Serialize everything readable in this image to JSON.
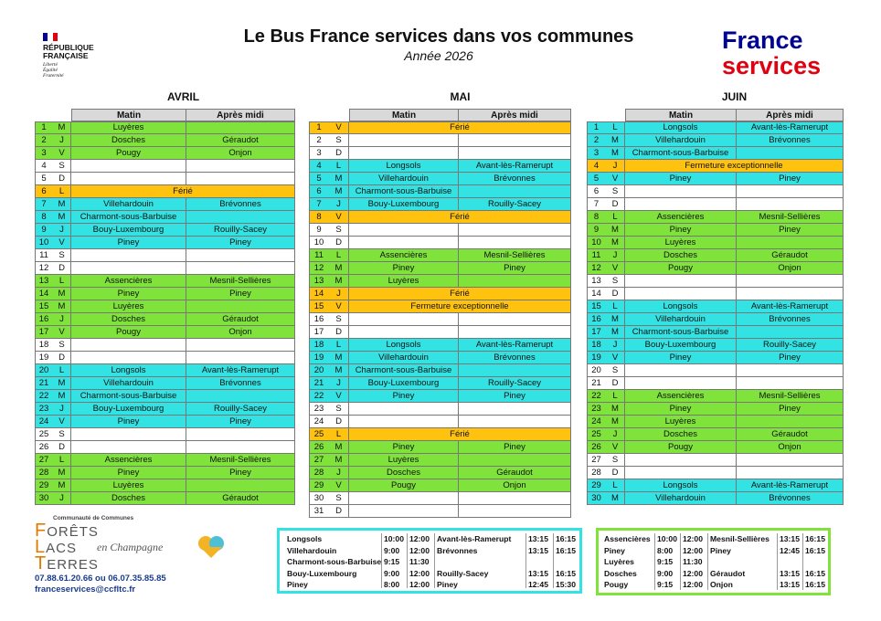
{
  "header": {
    "republique": [
      "RÉPUBLIQUE",
      "FRANÇAISE"
    ],
    "devise": [
      "Liberté",
      "Égalité",
      "Fraternité"
    ],
    "title": "Le Bus France services dans vos communes",
    "subtitle": "Année 2026",
    "brand": [
      "France",
      "services"
    ]
  },
  "columns": [
    "Matin",
    "Après midi"
  ],
  "fills": {
    "green": "#7fe33c",
    "cyan": "#33e3e3",
    "white": "#ffffff",
    "orange": "#ffc20e"
  },
  "months": [
    {
      "name": "AVRIL",
      "rows": [
        {
          "d": 1,
          "w": "M",
          "f": "green",
          "am": "Luyères"
        },
        {
          "d": 2,
          "w": "J",
          "f": "green",
          "am": "Dosches",
          "pm": "Géraudot"
        },
        {
          "d": 3,
          "w": "V",
          "f": "green",
          "am": "Pougy",
          "pm": "Onjon"
        },
        {
          "d": 4,
          "w": "S",
          "f": "white"
        },
        {
          "d": 5,
          "w": "D",
          "f": "white"
        },
        {
          "d": 6,
          "w": "L",
          "f": "orange",
          "span": "Férié"
        },
        {
          "d": 7,
          "w": "M",
          "f": "cyan",
          "am": "Villehardouin",
          "pm": "Brévonnes"
        },
        {
          "d": 8,
          "w": "M",
          "f": "cyan",
          "am": "Charmont-sous-Barbuise"
        },
        {
          "d": 9,
          "w": "J",
          "f": "cyan",
          "am": "Bouy-Luxembourg",
          "pm": "Rouilly-Sacey"
        },
        {
          "d": 10,
          "w": "V",
          "f": "cyan",
          "am": "Piney",
          "pm": "Piney"
        },
        {
          "d": 11,
          "w": "S",
          "f": "white"
        },
        {
          "d": 12,
          "w": "D",
          "f": "white"
        },
        {
          "d": 13,
          "w": "L",
          "f": "green",
          "am": "Assencières",
          "pm": "Mesnil-Sellières"
        },
        {
          "d": 14,
          "w": "M",
          "f": "green",
          "am": "Piney",
          "pm": "Piney"
        },
        {
          "d": 15,
          "w": "M",
          "f": "green",
          "am": "Luyères"
        },
        {
          "d": 16,
          "w": "J",
          "f": "green",
          "am": "Dosches",
          "pm": "Géraudot"
        },
        {
          "d": 17,
          "w": "V",
          "f": "green",
          "am": "Pougy",
          "pm": "Onjon"
        },
        {
          "d": 18,
          "w": "S",
          "f": "white"
        },
        {
          "d": 19,
          "w": "D",
          "f": "white"
        },
        {
          "d": 20,
          "w": "L",
          "f": "cyan",
          "am": "Longsols",
          "pm": "Avant-lès-Ramerupt"
        },
        {
          "d": 21,
          "w": "M",
          "f": "cyan",
          "am": "Villehardouin",
          "pm": "Brévonnes"
        },
        {
          "d": 22,
          "w": "M",
          "f": "cyan",
          "am": "Charmont-sous-Barbuise"
        },
        {
          "d": 23,
          "w": "J",
          "f": "cyan",
          "am": "Bouy-Luxembourg",
          "pm": "Rouilly-Sacey"
        },
        {
          "d": 24,
          "w": "V",
          "f": "cyan",
          "am": "Piney",
          "pm": "Piney"
        },
        {
          "d": 25,
          "w": "S",
          "f": "white"
        },
        {
          "d": 26,
          "w": "D",
          "f": "white"
        },
        {
          "d": 27,
          "w": "L",
          "f": "green",
          "am": "Assencières",
          "pm": "Mesnil-Sellières"
        },
        {
          "d": 28,
          "w": "M",
          "f": "green",
          "am": "Piney",
          "pm": "Piney"
        },
        {
          "d": 29,
          "w": "M",
          "f": "green",
          "am": "Luyères"
        },
        {
          "d": 30,
          "w": "J",
          "f": "green",
          "am": "Dosches",
          "pm": "Géraudot"
        }
      ]
    },
    {
      "name": "MAI",
      "rows": [
        {
          "d": 1,
          "w": "V",
          "f": "orange",
          "span": "Férié"
        },
        {
          "d": 2,
          "w": "S",
          "f": "white"
        },
        {
          "d": 3,
          "w": "D",
          "f": "white"
        },
        {
          "d": 4,
          "w": "L",
          "f": "cyan",
          "am": "Longsols",
          "pm": "Avant-lès-Ramerupt"
        },
        {
          "d": 5,
          "w": "M",
          "f": "cyan",
          "am": "Villehardouin",
          "pm": "Brévonnes"
        },
        {
          "d": 6,
          "w": "M",
          "f": "cyan",
          "am": "Charmont-sous-Barbuise"
        },
        {
          "d": 7,
          "w": "J",
          "f": "cyan",
          "am": "Bouy-Luxembourg",
          "pm": "Rouilly-Sacey"
        },
        {
          "d": 8,
          "w": "V",
          "f": "orange",
          "span": "Férié"
        },
        {
          "d": 9,
          "w": "S",
          "f": "white"
        },
        {
          "d": 10,
          "w": "D",
          "f": "white"
        },
        {
          "d": 11,
          "w": "L",
          "f": "green",
          "am": "Assencières",
          "pm": "Mesnil-Sellières"
        },
        {
          "d": 12,
          "w": "M",
          "f": "green",
          "am": "Piney",
          "pm": "Piney"
        },
        {
          "d": 13,
          "w": "M",
          "f": "green",
          "am": "Luyères"
        },
        {
          "d": 14,
          "w": "J",
          "f": "orange",
          "span": "Férié"
        },
        {
          "d": 15,
          "w": "V",
          "f": "orange",
          "span": "Fermeture exceptionnelle"
        },
        {
          "d": 16,
          "w": "S",
          "f": "white"
        },
        {
          "d": 17,
          "w": "D",
          "f": "white"
        },
        {
          "d": 18,
          "w": "L",
          "f": "cyan",
          "am": "Longsols",
          "pm": "Avant-lès-Ramerupt"
        },
        {
          "d": 19,
          "w": "M",
          "f": "cyan",
          "am": "Villehardouin",
          "pm": "Brévonnes"
        },
        {
          "d": 20,
          "w": "M",
          "f": "cyan",
          "am": "Charmont-sous-Barbuise"
        },
        {
          "d": 21,
          "w": "J",
          "f": "cyan",
          "am": "Bouy-Luxembourg",
          "pm": "Rouilly-Sacey"
        },
        {
          "d": 22,
          "w": "V",
          "f": "cyan",
          "am": "Piney",
          "pm": "Piney"
        },
        {
          "d": 23,
          "w": "S",
          "f": "white"
        },
        {
          "d": 24,
          "w": "D",
          "f": "white"
        },
        {
          "d": 25,
          "w": "L",
          "f": "orange",
          "span": "Férié"
        },
        {
          "d": 26,
          "w": "M",
          "f": "green",
          "am": "Piney",
          "pm": "Piney"
        },
        {
          "d": 27,
          "w": "M",
          "f": "green",
          "am": "Luyères"
        },
        {
          "d": 28,
          "w": "J",
          "f": "green",
          "am": "Dosches",
          "pm": "Géraudot"
        },
        {
          "d": 29,
          "w": "V",
          "f": "green",
          "am": "Pougy",
          "pm": "Onjon"
        },
        {
          "d": 30,
          "w": "S",
          "f": "white"
        },
        {
          "d": 31,
          "w": "D",
          "f": "white"
        }
      ]
    },
    {
      "name": "JUIN",
      "rows": [
        {
          "d": 1,
          "w": "L",
          "f": "cyan",
          "am": "Longsols",
          "pm": "Avant-lès-Ramerupt"
        },
        {
          "d": 2,
          "w": "M",
          "f": "cyan",
          "am": "Villehardouin",
          "pm": "Brévonnes"
        },
        {
          "d": 3,
          "w": "M",
          "f": "cyan",
          "am": "Charmont-sous-Barbuise"
        },
        {
          "d": 4,
          "w": "J",
          "f": "orange",
          "span": "Fermeture exceptionnelle"
        },
        {
          "d": 5,
          "w": "V",
          "f": "cyan",
          "am": "Piney",
          "pm": "Piney"
        },
        {
          "d": 6,
          "w": "S",
          "f": "white"
        },
        {
          "d": 7,
          "w": "D",
          "f": "white"
        },
        {
          "d": 8,
          "w": "L",
          "f": "green",
          "am": "Assencières",
          "pm": "Mesnil-Sellières"
        },
        {
          "d": 9,
          "w": "M",
          "f": "green",
          "am": "Piney",
          "pm": "Piney"
        },
        {
          "d": 10,
          "w": "M",
          "f": "green",
          "am": "Luyères"
        },
        {
          "d": 11,
          "w": "J",
          "f": "green",
          "am": "Dosches",
          "pm": "Géraudot"
        },
        {
          "d": 12,
          "w": "V",
          "f": "green",
          "am": "Pougy",
          "pm": "Onjon"
        },
        {
          "d": 13,
          "w": "S",
          "f": "white"
        },
        {
          "d": 14,
          "w": "D",
          "f": "white"
        },
        {
          "d": 15,
          "w": "L",
          "f": "cyan",
          "am": "Longsols",
          "pm": "Avant-lès-Ramerupt"
        },
        {
          "d": 16,
          "w": "M",
          "f": "cyan",
          "am": "Villehardouin",
          "pm": "Brévonnes"
        },
        {
          "d": 17,
          "w": "M",
          "f": "cyan",
          "am": "Charmont-sous-Barbuise"
        },
        {
          "d": 18,
          "w": "J",
          "f": "cyan",
          "am": "Bouy-Luxembourg",
          "pm": "Rouilly-Sacey"
        },
        {
          "d": 19,
          "w": "V",
          "f": "cyan",
          "am": "Piney",
          "pm": "Piney"
        },
        {
          "d": 20,
          "w": "S",
          "f": "white"
        },
        {
          "d": 21,
          "w": "D",
          "f": "white"
        },
        {
          "d": 22,
          "w": "L",
          "f": "green",
          "am": "Assencières",
          "pm": "Mesnil-Sellières"
        },
        {
          "d": 23,
          "w": "M",
          "f": "green",
          "am": "Piney",
          "pm": "Piney"
        },
        {
          "d": 24,
          "w": "M",
          "f": "green",
          "am": "Luyères"
        },
        {
          "d": 25,
          "w": "J",
          "f": "green",
          "am": "Dosches",
          "pm": "Géraudot"
        },
        {
          "d": 26,
          "w": "V",
          "f": "green",
          "am": "Pougy",
          "pm": "Onjon"
        },
        {
          "d": 27,
          "w": "S",
          "f": "white"
        },
        {
          "d": 28,
          "w": "D",
          "f": "white"
        },
        {
          "d": 29,
          "w": "L",
          "f": "cyan",
          "am": "Longsols",
          "pm": "Avant-lès-Ramerupt"
        },
        {
          "d": 30,
          "w": "M",
          "f": "cyan",
          "am": "Villehardouin",
          "pm": "Brévonnes"
        }
      ]
    }
  ],
  "schedules": [
    {
      "f": "cyan",
      "rows": [
        [
          "Longsols",
          "10:00",
          "12:00",
          "Avant-lès-Ramerupt",
          "13:15",
          "16:15"
        ],
        [
          "Villehardouin",
          "9:00",
          "12:00",
          "Brévonnes",
          "13:15",
          "16:15"
        ],
        [
          "Charmont-sous-Barbuise",
          "9:15",
          "11:30"
        ],
        [
          "Bouy-Luxembourg",
          "9:00",
          "12:00",
          "Rouilly-Sacey",
          "13:15",
          "16:15"
        ],
        [
          "Piney",
          "8:00",
          "12:00",
          "Piney",
          "12:45",
          "15:30"
        ]
      ]
    },
    {
      "f": "green",
      "rows": [
        [
          "Assencières",
          "10:00",
          "12:00",
          "Mesnil-Sellières",
          "13:15",
          "16:15"
        ],
        [
          "Piney",
          "8:00",
          "12:00",
          "Piney",
          "12:45",
          "16:15"
        ],
        [
          "Luyères",
          "9:15",
          "11:30"
        ],
        [
          "Dosches",
          "9:00",
          "12:00",
          "Géraudot",
          "13:15",
          "16:15"
        ],
        [
          "Pougy",
          "9:15",
          "12:00",
          "Onjon",
          "13:15",
          "16:15"
        ]
      ]
    }
  ],
  "footer": {
    "community": "Communauté de Communes",
    "logo": [
      "FORÊTS",
      "LACS",
      "TERRES"
    ],
    "tagline": "en Champagne",
    "phone": "07.88.61.20.66 ou 06.07.35.85.85",
    "email": "franceservices@ccfltc.fr"
  }
}
